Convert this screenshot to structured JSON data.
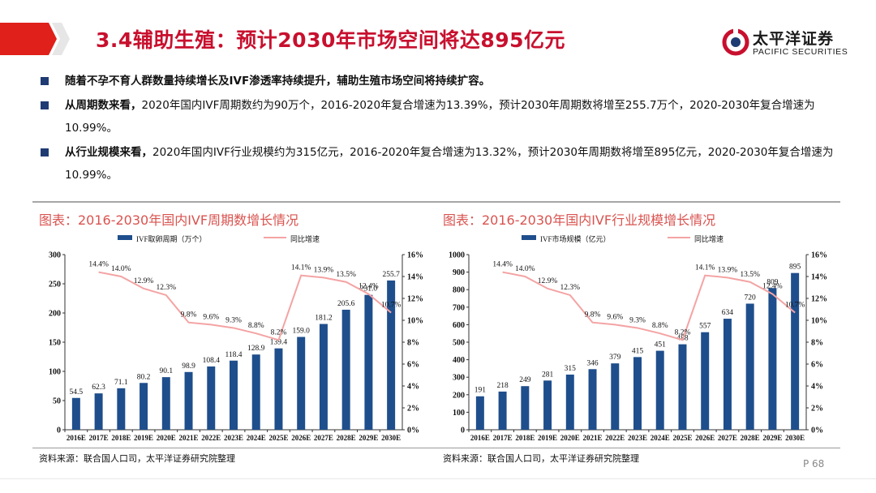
{
  "header": {
    "title": "3.4辅助生殖：预计2030年市场空间将达895亿元",
    "logo_cn": "太平洋证券",
    "logo_en": "PACIFIC SECURITIES"
  },
  "bullets": [
    {
      "bold": "随着不孕不育人群数量持续增长及IVF渗透率持续提升，辅助生殖市场空间将持续扩容。",
      "text": ""
    },
    {
      "bold": "从周期数来看，",
      "text": "2020年国内IVF周期数约为90万个，2016-2020年复合增速为13.39%，预计2030年周期数将增至255.7万个，2020-2030年复合增速为10.99%。"
    },
    {
      "bold": "从行业规模来看，",
      "text": "2020年国内IVF行业规模约为315亿元，2016-2020年复合增速为13.32%，预计2030年周期数将增至895亿元，2020-2030年复合增速为10.99%。"
    }
  ],
  "panels": [
    {
      "title": "图表：2016-2030年国内IVF周期数增长情况",
      "source": "资料来源：联合国人口司，太平洋证券研究院整理"
    },
    {
      "title": "图表：2016-2030年国内IVF行业规模增长情况",
      "source": "资料来源：联合国人口司，太平洋证券研究院整理"
    }
  ],
  "footer": {
    "page": "P 68"
  },
  "colors": {
    "bar": "#1f4e8c",
    "line": "#f4a3a3",
    "title_red": "#c8102e",
    "accent_red": "#d9534f"
  },
  "chart_data": [
    {
      "type": "bar",
      "categories": [
        "2016E",
        "2017E",
        "2018E",
        "2019E",
        "2020E",
        "2021E",
        "2022E",
        "2023E",
        "2024E",
        "2025E",
        "2026E",
        "2027E",
        "2028E",
        "2029E",
        "2030E"
      ],
      "series": [
        {
          "name": "IVF取卵周期（万个）",
          "type": "bar",
          "axis": "left",
          "values": [
            54.5,
            62.3,
            71.1,
            80.2,
            90.1,
            98.9,
            108.4,
            118.4,
            128.9,
            139.4,
            159.0,
            181.2,
            205.6,
            231.0,
            255.7
          ],
          "labels": [
            "54.5",
            "62.3",
            "71.1",
            "80.2",
            "90.1",
            "98.9",
            "108.4",
            "118.4",
            "128.9",
            "139.4",
            "159.0",
            "181.2",
            "205.6",
            "231.0",
            "255.7"
          ]
        },
        {
          "name": "同比增速",
          "type": "line",
          "axis": "right",
          "values": [
            null,
            14.4,
            14.0,
            12.9,
            12.3,
            9.8,
            9.6,
            9.3,
            8.8,
            8.2,
            14.1,
            13.9,
            13.5,
            12.4,
            10.7
          ],
          "labels": [
            "",
            "14.4%",
            "14.0%",
            "12.9%",
            "12.3%",
            "9.8%",
            "9.6%",
            "9.3%",
            "8.8%",
            "8.2%",
            "14.1%",
            "13.9%",
            "13.5%",
            "12.4%",
            "10.7%"
          ]
        }
      ],
      "ylim": [
        0,
        300
      ],
      "yticks": [
        "0",
        "50",
        "100",
        "150",
        "200",
        "250",
        "300"
      ],
      "y2lim": [
        0,
        16
      ],
      "y2ticks": [
        "0%",
        "2%",
        "4%",
        "6%",
        "8%",
        "10%",
        "12%",
        "14%",
        "16%"
      ],
      "legend": "top"
    },
    {
      "type": "bar",
      "categories": [
        "2016E",
        "2017E",
        "2018E",
        "2019E",
        "2020E",
        "2021E",
        "2022E",
        "2023E",
        "2024E",
        "2025E",
        "2026E",
        "2027E",
        "2028E",
        "2029E",
        "2030E"
      ],
      "series": [
        {
          "name": "IVF市场规模（亿元）",
          "type": "bar",
          "axis": "left",
          "values": [
            191,
            218,
            249,
            281,
            315,
            346,
            379,
            415,
            451,
            488,
            557,
            634,
            720,
            809,
            895
          ],
          "labels": [
            "191",
            "218",
            "249",
            "281",
            "315",
            "346",
            "379",
            "415",
            "451",
            "488",
            "557",
            "634",
            "720",
            "809",
            "895"
          ]
        },
        {
          "name": "同比增速",
          "type": "line",
          "axis": "right",
          "values": [
            null,
            14.4,
            14.0,
            12.9,
            12.3,
            9.8,
            9.6,
            9.3,
            8.8,
            8.2,
            14.1,
            13.9,
            13.5,
            12.4,
            10.7
          ],
          "labels": [
            "",
            "14.4%",
            "14.0%",
            "12.9%",
            "12.3%",
            "9.8%",
            "9.6%",
            "9.3%",
            "8.8%",
            "8.2%",
            "14.1%",
            "13.9%",
            "13.5%",
            "12.4%",
            "10.7%"
          ]
        }
      ],
      "ylim": [
        0,
        1000
      ],
      "yticks": [
        "0",
        "100",
        "200",
        "300",
        "400",
        "500",
        "600",
        "700",
        "800",
        "900",
        "1000"
      ],
      "y2lim": [
        0,
        16
      ],
      "y2ticks": [
        "0%",
        "2%",
        "4%",
        "6%",
        "8%",
        "10%",
        "12%",
        "14%",
        "16%"
      ],
      "legend": "top"
    }
  ]
}
